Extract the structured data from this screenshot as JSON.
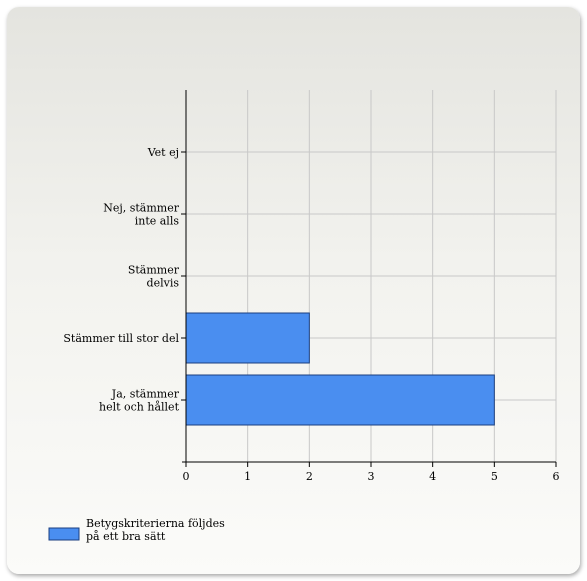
{
  "chart_data": {
    "type": "bar",
    "orientation": "horizontal",
    "categories": [
      [
        "Vet ej"
      ],
      [
        "Nej, stämmer",
        "inte alls"
      ],
      [
        "Stämmer",
        "delvis"
      ],
      [
        "Stämmer till stor del"
      ],
      [
        "Ja, stämmer",
        "helt och hållet"
      ]
    ],
    "series": [
      {
        "name": [
          "Betygskriterierna följdes",
          "på ett bra sätt"
        ],
        "color": "#4a8ef0",
        "values": [
          0,
          0,
          0,
          2,
          5
        ]
      }
    ],
    "x_ticks": [
      "0",
      "1",
      "2",
      "3",
      "4",
      "5",
      "6"
    ],
    "xlim": [
      0,
      6
    ],
    "grid": true,
    "legend_position": "bottom-left"
  }
}
